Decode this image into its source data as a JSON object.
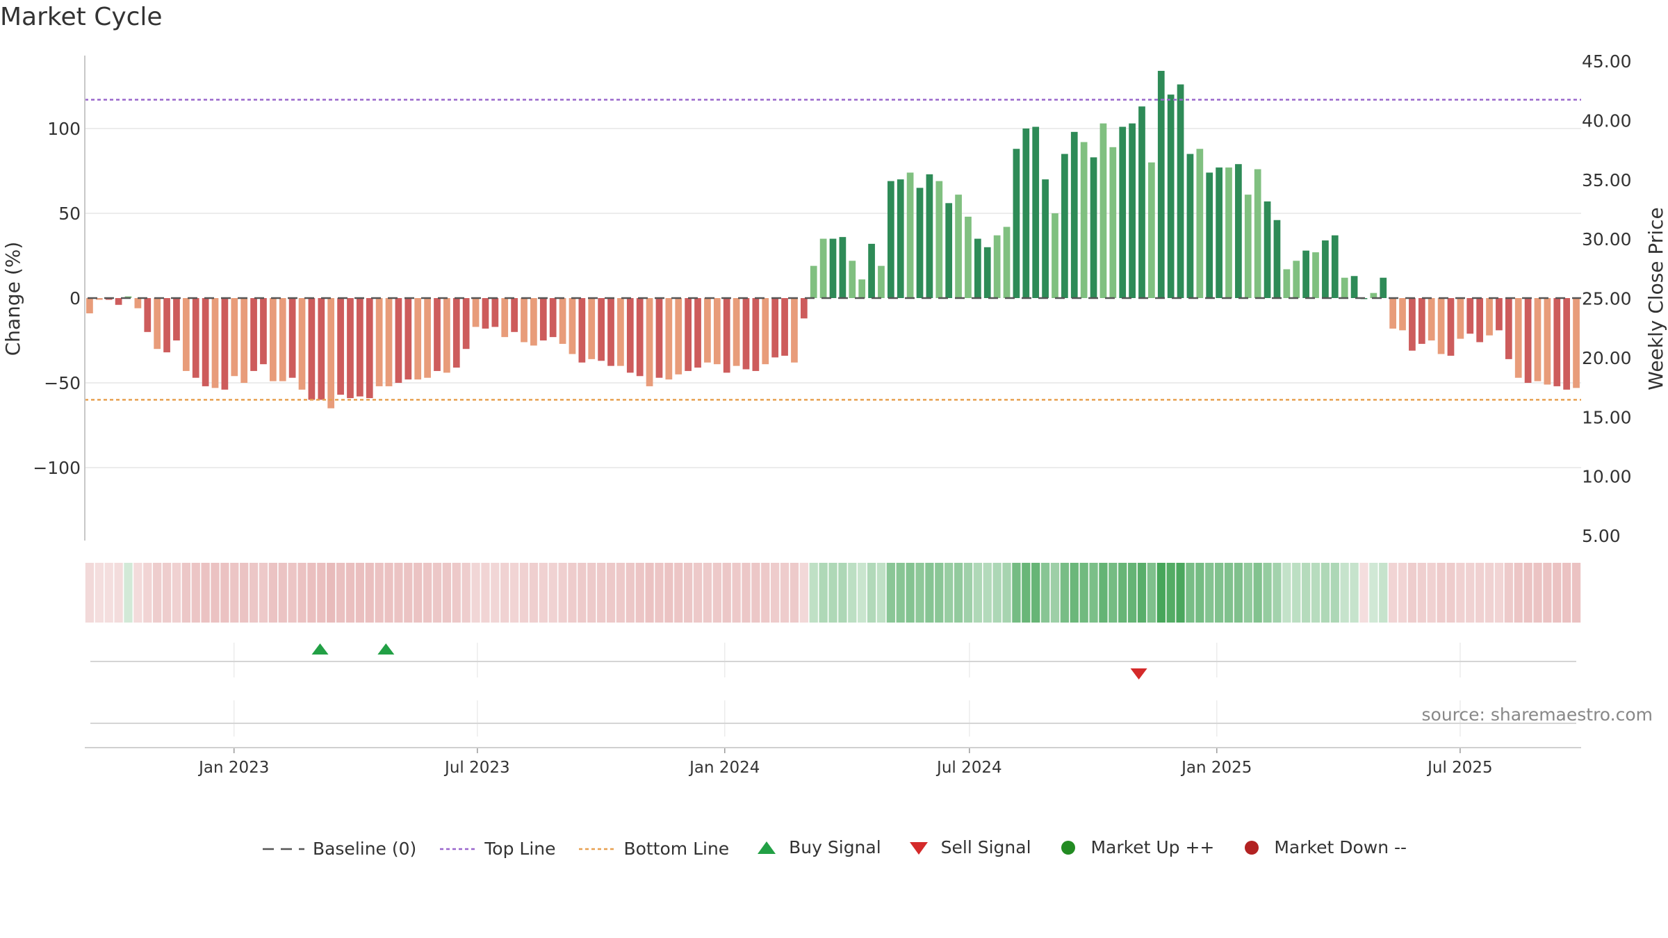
{
  "title": "Market Cycle",
  "source": "source: sharemaestro.com",
  "colors": {
    "up_dark": "#2e8b57",
    "up_light": "#80c080",
    "down_dark": "#cd5c5c",
    "down_light": "#e89c7a",
    "top_line": "#9966cc",
    "bottom_line": "#e8a050",
    "baseline": "#555555",
    "buy": "#22a045",
    "sell": "#d42a2a",
    "market_up": "#228b22",
    "market_down": "#b22222"
  },
  "chart_data": {
    "type": "bar",
    "ylabel_left": "Change (%)",
    "ylabel_right": "Weekly Close Price",
    "ylim_left": [
      -143,
      143
    ],
    "ylim_right": [
      5,
      45
    ],
    "left_ticks": [
      "−100",
      "−50",
      "0",
      "50",
      "100"
    ],
    "left_tick_values": [
      -100,
      -50,
      0,
      50,
      100
    ],
    "right_ticks": [
      "5.00",
      "10.00",
      "15.00",
      "20.00",
      "25.00",
      "30.00",
      "35.00",
      "40.00",
      "45.00"
    ],
    "right_tick_values": [
      5,
      10,
      15,
      20,
      25,
      30,
      35,
      40,
      45
    ],
    "x_range": [
      "2022-09-12",
      "2025-09-29"
    ],
    "x_ticks": [
      "Jan 2023",
      "Jul 2023",
      "Jan 2024",
      "Jul 2024",
      "Jan 2025",
      "Jul 2025"
    ],
    "x_tick_dates": [
      "2023-01-01",
      "2023-07-01",
      "2024-01-01",
      "2024-07-01",
      "2025-01-01",
      "2025-07-01"
    ],
    "top_line": 117,
    "bottom_line": -60,
    "baseline": 0,
    "weekly_change": [
      -9,
      -1,
      -1,
      -4,
      1,
      -6,
      -20,
      -30,
      -32,
      -25,
      -43,
      -47,
      -52,
      -53,
      -54,
      -46,
      -50,
      -43,
      -39,
      -49,
      -49,
      -47,
      -54,
      -60,
      -60,
      -65,
      -57,
      -59,
      -58,
      -59,
      -52,
      -52,
      -50,
      -48,
      -48,
      -47,
      -43,
      -44,
      -41,
      -30,
      -17,
      -18,
      -17,
      -23,
      -20,
      -26,
      -28,
      -25,
      -23,
      -27,
      -33,
      -38,
      -36,
      -37,
      -40,
      -40,
      -44,
      -46,
      -52,
      -47,
      -48,
      -45,
      -43,
      -41,
      -38,
      -39,
      -44,
      -40,
      -42,
      -43,
      -39,
      -35,
      -34,
      -38,
      -12,
      19,
      35,
      35,
      36,
      22,
      11,
      32,
      19,
      69,
      70,
      74,
      65,
      73,
      69,
      56,
      61,
      48,
      35,
      30,
      37,
      42,
      88,
      100,
      101,
      70,
      50,
      85,
      98,
      92,
      83,
      103,
      89,
      101,
      103,
      113,
      80,
      134,
      120,
      126,
      85,
      88,
      74,
      77,
      77,
      79,
      61,
      76,
      57,
      46,
      17,
      22,
      28,
      27,
      34,
      37,
      12,
      13,
      0,
      3,
      12,
      -18,
      -19,
      -31,
      -27,
      -25,
      -33,
      -34,
      -24,
      -21,
      -26,
      -22,
      -19,
      -36,
      -47,
      -50,
      -49,
      -51,
      -52,
      -54,
      -53
    ],
    "signals": [
      {
        "type": "buy",
        "date": "2023-03-06"
      },
      {
        "type": "buy",
        "date": "2023-04-24"
      },
      {
        "type": "sell",
        "date": "2024-11-04"
      }
    ],
    "legend": [
      "Baseline (0)",
      "Top Line",
      "Bottom Line",
      "Buy Signal",
      "Sell Signal",
      "Market Up ++",
      "Market Down --"
    ]
  }
}
